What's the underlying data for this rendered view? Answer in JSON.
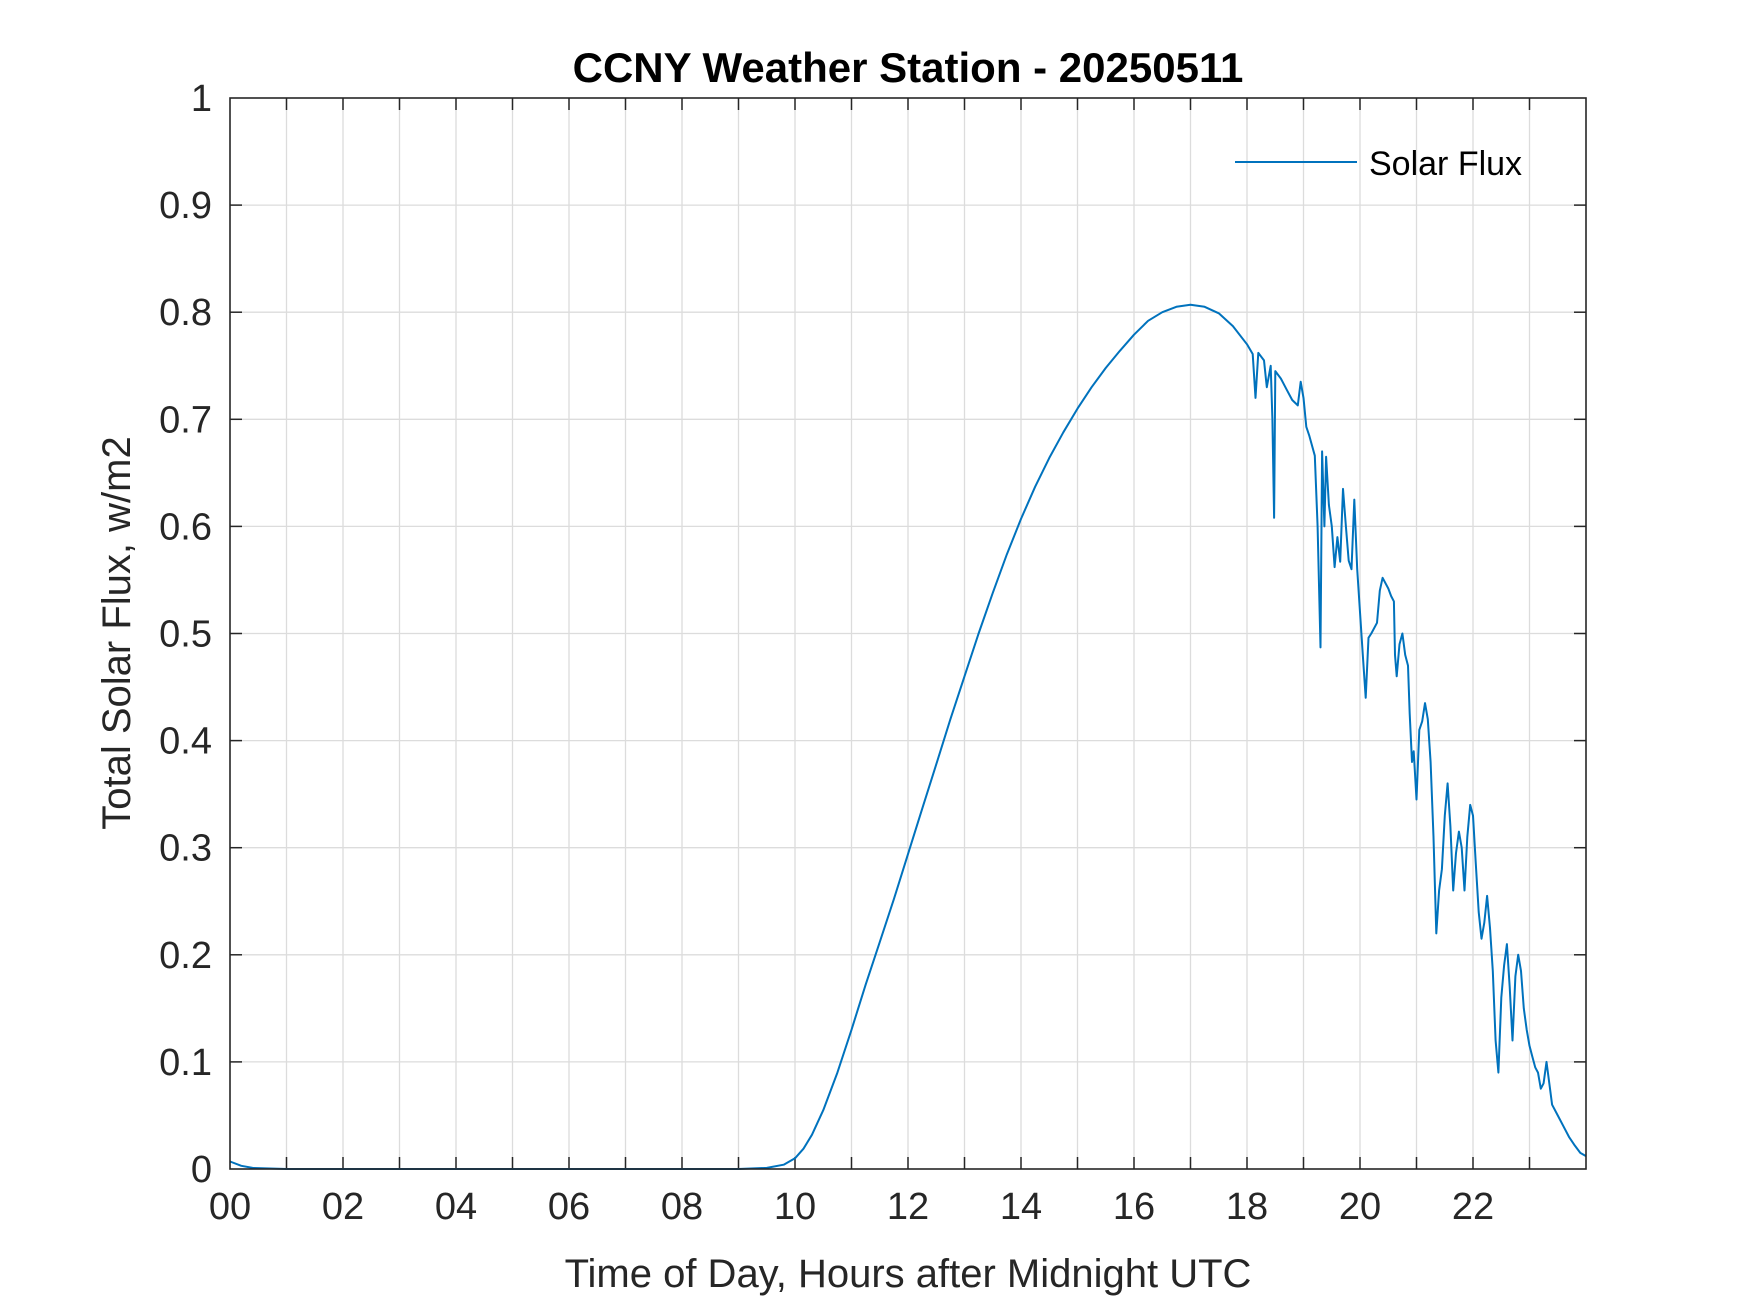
{
  "chart_data": {
    "type": "line",
    "title": "CCNY Weather Station - 20250511",
    "xlabel": "Time of Day, Hours after Midnight UTC",
    "ylabel": "Total Solar Flux, w/m2",
    "xlim": [
      0,
      24
    ],
    "ylim": [
      0,
      1
    ],
    "grid": true,
    "legend_position": "top-right",
    "x_ticks": [
      0,
      2,
      4,
      6,
      8,
      10,
      12,
      14,
      16,
      18,
      20,
      22
    ],
    "x_tick_labels": [
      "00",
      "02",
      "04",
      "06",
      "08",
      "10",
      "12",
      "14",
      "16",
      "18",
      "20",
      "22"
    ],
    "y_ticks": [
      0,
      0.1,
      0.2,
      0.3,
      0.4,
      0.5,
      0.6,
      0.7,
      0.8,
      0.9,
      1
    ],
    "y_tick_labels": [
      "0",
      "0.1",
      "0.2",
      "0.3",
      "0.4",
      "0.5",
      "0.6",
      "0.7",
      "0.8",
      "0.9",
      "1"
    ],
    "series": [
      {
        "name": "Solar Flux",
        "color": "#0072BD",
        "x": [
          0,
          0.2,
          0.4,
          1,
          2,
          3,
          4,
          5,
          6,
          7,
          8,
          9,
          9.5,
          9.8,
          10,
          10.15,
          10.3,
          10.5,
          10.75,
          11,
          11.25,
          11.5,
          11.75,
          12,
          12.25,
          12.5,
          12.75,
          13,
          13.25,
          13.5,
          13.75,
          14,
          14.25,
          14.5,
          14.75,
          15,
          15.25,
          15.5,
          15.75,
          16,
          16.25,
          16.5,
          16.75,
          17,
          17.25,
          17.5,
          17.75,
          18,
          18.1,
          18.15,
          18.2,
          18.3,
          18.35,
          18.42,
          18.45,
          18.48,
          18.5,
          18.6,
          18.7,
          18.8,
          18.9,
          18.95,
          19.0,
          19.05,
          19.1,
          19.2,
          19.25,
          19.3,
          19.33,
          19.37,
          19.4,
          19.45,
          19.5,
          19.55,
          19.6,
          19.65,
          19.7,
          19.75,
          19.8,
          19.85,
          19.9,
          19.95,
          20.0,
          20.05,
          20.1,
          20.15,
          20.2,
          20.3,
          20.35,
          20.4,
          20.5,
          20.55,
          20.6,
          20.62,
          20.65,
          20.7,
          20.75,
          20.8,
          20.85,
          20.88,
          20.92,
          20.95,
          21.0,
          21.05,
          21.1,
          21.15,
          21.2,
          21.25,
          21.3,
          21.35,
          21.4,
          21.45,
          21.5,
          21.55,
          21.6,
          21.65,
          21.7,
          21.75,
          21.8,
          21.85,
          21.9,
          21.95,
          22.0,
          22.05,
          22.1,
          22.15,
          22.2,
          22.25,
          22.3,
          22.35,
          22.4,
          22.45,
          22.5,
          22.55,
          22.6,
          22.65,
          22.7,
          22.75,
          22.8,
          22.85,
          22.9,
          22.95,
          23.0,
          23.05,
          23.1,
          23.15,
          23.2,
          23.25,
          23.3,
          23.35,
          23.4,
          23.5,
          23.6,
          23.7,
          23.8,
          23.9,
          24.0
        ],
        "y": [
          0.007,
          0.003,
          0.001,
          0,
          0,
          0,
          0,
          0,
          0,
          0,
          0,
          0,
          0.001,
          0.004,
          0.01,
          0.019,
          0.032,
          0.055,
          0.09,
          0.13,
          0.172,
          0.212,
          0.252,
          0.294,
          0.336,
          0.378,
          0.42,
          0.46,
          0.5,
          0.538,
          0.574,
          0.607,
          0.637,
          0.664,
          0.688,
          0.71,
          0.73,
          0.748,
          0.764,
          0.779,
          0.792,
          0.8,
          0.805,
          0.807,
          0.805,
          0.799,
          0.787,
          0.77,
          0.761,
          0.72,
          0.762,
          0.755,
          0.73,
          0.75,
          0.7,
          0.608,
          0.745,
          0.738,
          0.728,
          0.718,
          0.713,
          0.735,
          0.72,
          0.693,
          0.685,
          0.666,
          0.6,
          0.487,
          0.67,
          0.6,
          0.665,
          0.62,
          0.6,
          0.562,
          0.59,
          0.567,
          0.635,
          0.6,
          0.568,
          0.56,
          0.625,
          0.56,
          0.52,
          0.48,
          0.44,
          0.496,
          0.5,
          0.51,
          0.54,
          0.552,
          0.542,
          0.535,
          0.53,
          0.48,
          0.46,
          0.49,
          0.5,
          0.48,
          0.47,
          0.425,
          0.38,
          0.39,
          0.345,
          0.41,
          0.418,
          0.435,
          0.42,
          0.38,
          0.31,
          0.22,
          0.26,
          0.28,
          0.33,
          0.36,
          0.32,
          0.26,
          0.295,
          0.315,
          0.3,
          0.26,
          0.31,
          0.34,
          0.33,
          0.285,
          0.24,
          0.215,
          0.23,
          0.255,
          0.225,
          0.185,
          0.12,
          0.09,
          0.16,
          0.19,
          0.21,
          0.17,
          0.12,
          0.18,
          0.2,
          0.185,
          0.15,
          0.13,
          0.115,
          0.105,
          0.095,
          0.09,
          0.075,
          0.08,
          0.1,
          0.08,
          0.06,
          0.05,
          0.04,
          0.03,
          0.022,
          0.015,
          0.012
        ]
      }
    ]
  }
}
